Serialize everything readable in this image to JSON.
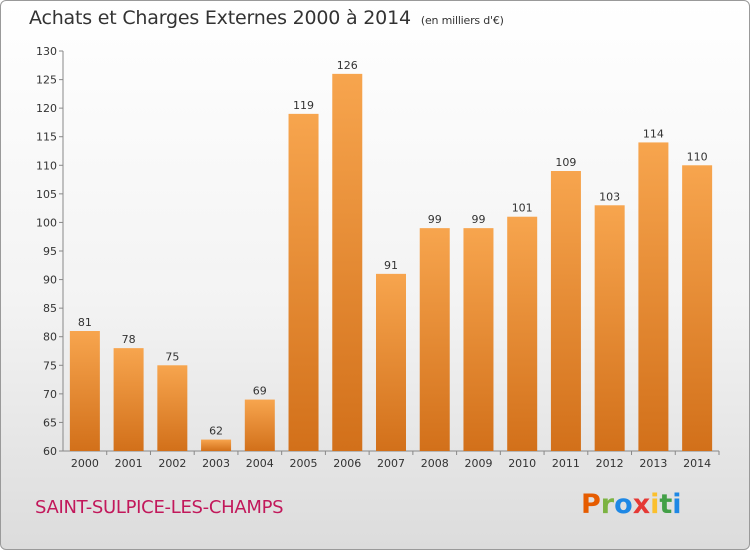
{
  "header": {
    "title": "Achats et Charges Externes 2000 à 2014",
    "subtitle": "(en milliers d'€)"
  },
  "footer": {
    "place": "SAINT-SULPICE-LES-CHAMPS",
    "logo": {
      "letters": [
        "P",
        "r",
        "o",
        "x",
        "i",
        "t",
        "i"
      ],
      "colors": [
        "#e65c00",
        "#7cb342",
        "#1e88e5",
        "#e53935",
        "#fbc02d",
        "#43a047",
        "#1e88e5"
      ]
    }
  },
  "chart_data": {
    "type": "bar",
    "title": "Achats et Charges Externes 2000 à 2014",
    "subtitle": "(en milliers d'€)",
    "categories": [
      "2000",
      "2001",
      "2002",
      "2003",
      "2004",
      "2005",
      "2006",
      "2007",
      "2008",
      "2009",
      "2010",
      "2011",
      "2012",
      "2013",
      "2014"
    ],
    "values": [
      81,
      78,
      75,
      62,
      69,
      119,
      126,
      91,
      99,
      99,
      101,
      109,
      103,
      114,
      110
    ],
    "ylim": [
      60,
      130
    ],
    "yticks": [
      60,
      65,
      70,
      75,
      80,
      85,
      90,
      95,
      100,
      105,
      110,
      115,
      120,
      125,
      130
    ],
    "grid": false,
    "bar_color_top": "#f7a54e",
    "bar_color_bottom": "#d2701a"
  }
}
